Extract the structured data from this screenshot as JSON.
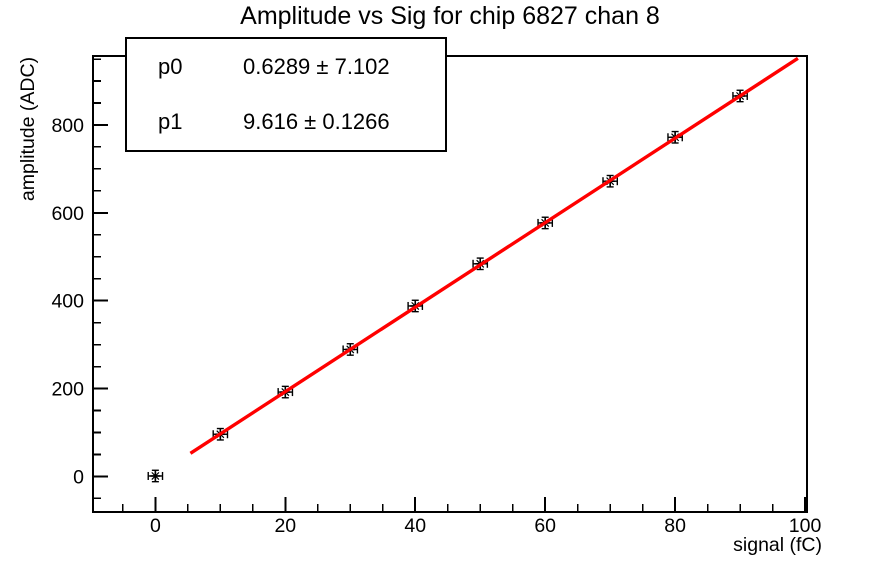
{
  "chart_data": {
    "type": "scatter",
    "title": "Amplitude vs Sig for chip 6827 chan 8",
    "xlabel": "signal (fC)",
    "ylabel": "amplitude (ADC)",
    "xlim": [
      -9.6,
      100.3
    ],
    "ylim": [
      -81,
      957
    ],
    "xticks": [
      0,
      20,
      40,
      60,
      80,
      100
    ],
    "xtick_minor_step": 5,
    "yticks": [
      0,
      200,
      400,
      600,
      800
    ],
    "ytick_minor_step": 50,
    "grid": false,
    "series": [
      {
        "name": "data",
        "type": "points",
        "marker": "asterisk",
        "color": "#000000",
        "x": [
          0,
          10,
          20,
          30,
          40,
          50,
          60,
          70,
          80,
          90
        ],
        "y": [
          1,
          96,
          192,
          289,
          388,
          484,
          577,
          672,
          772,
          866
        ],
        "xerr": 1.1,
        "yerr": 13
      },
      {
        "name": "fit",
        "type": "line",
        "color": "#ff0000",
        "p0": 0.6289,
        "p1": 9.616,
        "x_range": [
          5.4,
          98.9
        ]
      }
    ]
  },
  "stats": {
    "rows": [
      {
        "name": "p0",
        "value": "0.6289 ± 7.102"
      },
      {
        "name": "p1",
        "value": "9.616 ± 0.1266"
      }
    ]
  },
  "colors": {
    "frame": "#000000",
    "marker": "#000000",
    "fit_line": "#ff0000",
    "background": "#ffffff"
  }
}
